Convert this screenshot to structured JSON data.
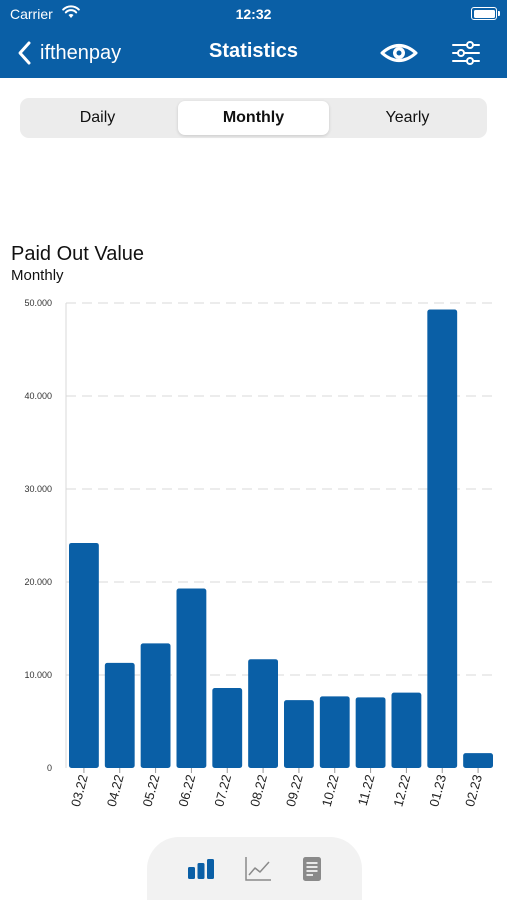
{
  "status_bar": {
    "carrier": "Carrier",
    "time": "12:32"
  },
  "nav": {
    "back_label": "ifthenpay",
    "title": "Statistics"
  },
  "segments": [
    {
      "label": "Daily",
      "selected": false
    },
    {
      "label": "Monthly",
      "selected": true
    },
    {
      "label": "Yearly",
      "selected": false
    }
  ],
  "chart_header": {
    "title": "Paid Out Value",
    "subtitle": "Monthly"
  },
  "chart_data": {
    "type": "bar",
    "title": "Paid Out Value",
    "subtitle": "Monthly",
    "categories": [
      "03.22",
      "04.22",
      "05.22",
      "06.22",
      "07.22",
      "08.22",
      "09.22",
      "10.22",
      "11.22",
      "12.22",
      "01.23",
      "02.23"
    ],
    "values": [
      24200,
      11300,
      13400,
      19300,
      8600,
      11700,
      7300,
      7700,
      7600,
      8100,
      49300,
      1600
    ],
    "ylim": [
      0,
      50000
    ],
    "yticks": [
      0,
      10000,
      20000,
      30000,
      40000,
      50000
    ],
    "ytick_labels": [
      "0",
      "10.000",
      "20.000",
      "30.000",
      "40.000",
      "50.000"
    ],
    "grid": true,
    "bar_color": "#0a5fa6"
  },
  "bottom_tabs": [
    {
      "icon": "bar-chart-icon",
      "active": true
    },
    {
      "icon": "line-chart-icon",
      "active": false
    },
    {
      "icon": "document-icon",
      "active": false
    }
  ],
  "colors": {
    "brand": "#0a5fa6",
    "inactive_icon": "#8a8a8a"
  }
}
